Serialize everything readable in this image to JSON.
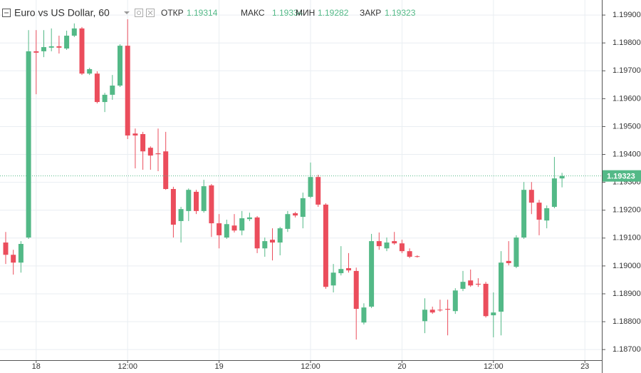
{
  "chart_data": {
    "type": "candlestick",
    "title": "Euro vs US Dollar, 60",
    "ohlc_labels": {
      "open": "ОТКР",
      "high": "МАКС",
      "low": "МИН",
      "close": "ЗАКР"
    },
    "categories": [
      null,
      null,
      null,
      null,
      "18",
      null,
      null,
      null,
      null,
      null,
      null,
      null,
      null,
      null,
      null,
      null,
      "12:00",
      null,
      null,
      null,
      null,
      null,
      null,
      null,
      null,
      null,
      null,
      null,
      "19",
      null,
      null,
      null,
      null,
      null,
      null,
      null,
      null,
      null,
      null,
      null,
      "12:00",
      null,
      null,
      null,
      null,
      null,
      null,
      null,
      null,
      null,
      null,
      null,
      "20",
      null,
      null,
      null,
      null,
      null,
      null,
      null,
      null,
      null,
      null,
      null,
      "12:00",
      null,
      null,
      null,
      null,
      null,
      null,
      null,
      null,
      null,
      null,
      null,
      "23"
    ],
    "open": [
      1.19084,
      1.1904,
      1.19012,
      1.19102,
      1.1977,
      1.1977,
      1.19783,
      1.19788,
      1.1978,
      1.19826,
      1.19852,
      1.1969,
      1.1969,
      1.19588,
      1.19614,
      1.19647,
      1.1979,
      1.19475,
      1.19473,
      1.19424,
      1.19404,
      1.19411,
      1.19276,
      1.19161,
      1.19197,
      1.19266,
      1.19197,
      1.19289,
      1.19153,
      1.19102,
      1.19145,
      1.19127,
      1.19168,
      1.19174,
      1.19063,
      1.19094,
      1.19084,
      1.19133,
      1.19189,
      1.19176,
      1.19248,
      1.19319,
      1.1922,
      1.1893,
      1.18974,
      1.18992,
      1.18982,
      1.18797,
      1.18854,
      1.19089,
      1.19063,
      1.19089,
      1.19081,
      1.19053,
      1.19035,
      1.18802,
      1.18843,
      1.18843,
      1.18846,
      1.18838,
      1.18918,
      1.18948,
      1.18936,
      1.18936,
      1.18823,
      1.18836,
      1.19018,
      1.18997,
      1.19102,
      1.19273,
      1.19227,
      1.19163,
      1.19212,
      1.19314,
      null,
      null,
      null
    ],
    "high": [
      1.19122,
      1.19058,
      1.19089,
      1.19846,
      1.19846,
      1.19846,
      1.19852,
      1.19826,
      1.19844,
      1.1987,
      1.19857,
      1.19711,
      1.19698,
      1.19621,
      1.19685,
      1.19795,
      1.19885,
      1.19493,
      1.19481,
      1.19429,
      1.19493,
      1.19481,
      1.19284,
      1.19212,
      1.19278,
      1.19273,
      1.19309,
      1.19294,
      1.19186,
      1.19166,
      1.19186,
      1.19197,
      1.19191,
      1.19179,
      1.19102,
      1.19135,
      1.1914,
      1.19197,
      1.19194,
      1.19263,
      1.19371,
      1.19327,
      1.19225,
      1.19007,
      1.19071,
      1.19046,
      1.18994,
      1.18866,
      1.19115,
      1.1912,
      1.19102,
      1.19122,
      1.19094,
      1.19063,
      1.19038,
      1.18884,
      1.18854,
      1.18879,
      1.18879,
      1.1892,
      1.18982,
      1.18987,
      1.18956,
      1.18943,
      1.18905,
      1.19053,
      1.19089,
      1.1911,
      1.19301,
      1.19301,
      1.19237,
      1.19217,
      1.19391,
      1.19334,
      null,
      null,
      null
    ],
    "low": [
      1.19007,
      1.18969,
      1.18976,
      1.19097,
      1.19616,
      1.19749,
      1.1977,
      1.19762,
      1.19775,
      1.19821,
      1.19685,
      1.19685,
      1.19583,
      1.19552,
      1.19596,
      1.19642,
      1.19455,
      1.1935,
      1.19345,
      1.19345,
      1.1934,
      1.19273,
      1.19102,
      1.19084,
      1.19161,
      1.19186,
      1.19191,
      1.19104,
      1.19063,
      1.19097,
      1.1912,
      1.1911,
      1.19161,
      1.19046,
      1.19033,
      1.1902,
      1.19038,
      1.19122,
      1.19174,
      1.19135,
      1.19243,
      1.19212,
      1.18918,
      1.18905,
      1.18966,
      1.18976,
      1.18736,
      1.1879,
      1.18849,
      1.19058,
      1.19053,
      1.19076,
      1.19046,
      1.19028,
      1.1903,
      1.18759,
      1.18828,
      1.18836,
      1.18751,
      1.18828,
      1.1891,
      1.18925,
      1.18925,
      1.18815,
      1.18744,
      1.18751,
      1.19002,
      1.18992,
      1.19097,
      1.19186,
      1.1911,
      1.19135,
      1.19207,
      1.19282,
      null,
      null,
      null
    ],
    "close": [
      1.1904,
      1.19012,
      1.19079,
      1.1977,
      1.19765,
      1.19785,
      1.19788,
      1.19783,
      1.19826,
      1.19852,
      1.1969,
      1.19706,
      1.19588,
      1.19614,
      1.19647,
      1.1979,
      1.19468,
      1.19468,
      1.19411,
      1.19396,
      1.19401,
      1.19276,
      1.19148,
      1.19204,
      1.19273,
      1.19197,
      1.19286,
      1.19153,
      1.1911,
      1.1915,
      1.19127,
      1.19171,
      1.19174,
      1.19063,
      1.19089,
      1.19084,
      1.19135,
      1.19186,
      1.19181,
      1.19243,
      1.19319,
      1.1922,
      1.18925,
      1.18976,
      1.18989,
      1.18984,
      1.18846,
      1.18851,
      1.19089,
      1.19071,
      1.19084,
      1.19081,
      1.19053,
      1.19033,
      1.19033,
      1.18843,
      1.18833,
      1.18841,
      1.18843,
      1.18912,
      1.18943,
      1.1893,
      1.18933,
      1.1882,
      1.18833,
      1.19012,
      1.1901,
      1.19102,
      1.19273,
      1.19227,
      1.19166,
      1.19207,
      1.19314,
      1.19323,
      null,
      null,
      null
    ],
    "up_color": "#53b987",
    "down_color": "#eb4d5c",
    "ylim": [
      1.18662,
      1.19954
    ],
    "yticks": [
      {
        "value": 1.187,
        "label": "1.18700"
      },
      {
        "value": 1.188,
        "label": "1.18800"
      },
      {
        "value": 1.189,
        "label": "1.18900"
      },
      {
        "value": 1.19,
        "label": "1.19000"
      },
      {
        "value": 1.191,
        "label": "1.19100"
      },
      {
        "value": 1.192,
        "label": "1.19200"
      },
      {
        "value": 1.193,
        "label": "1.19300"
      },
      {
        "value": 1.194,
        "label": "1.19400"
      },
      {
        "value": 1.195,
        "label": "1.19500"
      },
      {
        "value": 1.196,
        "label": "1.19600"
      },
      {
        "value": 1.197,
        "label": "1.19700"
      },
      {
        "value": 1.198,
        "label": "1.19800"
      },
      {
        "value": 1.199,
        "label": "1.19900"
      }
    ],
    "grid": true
  }
}
